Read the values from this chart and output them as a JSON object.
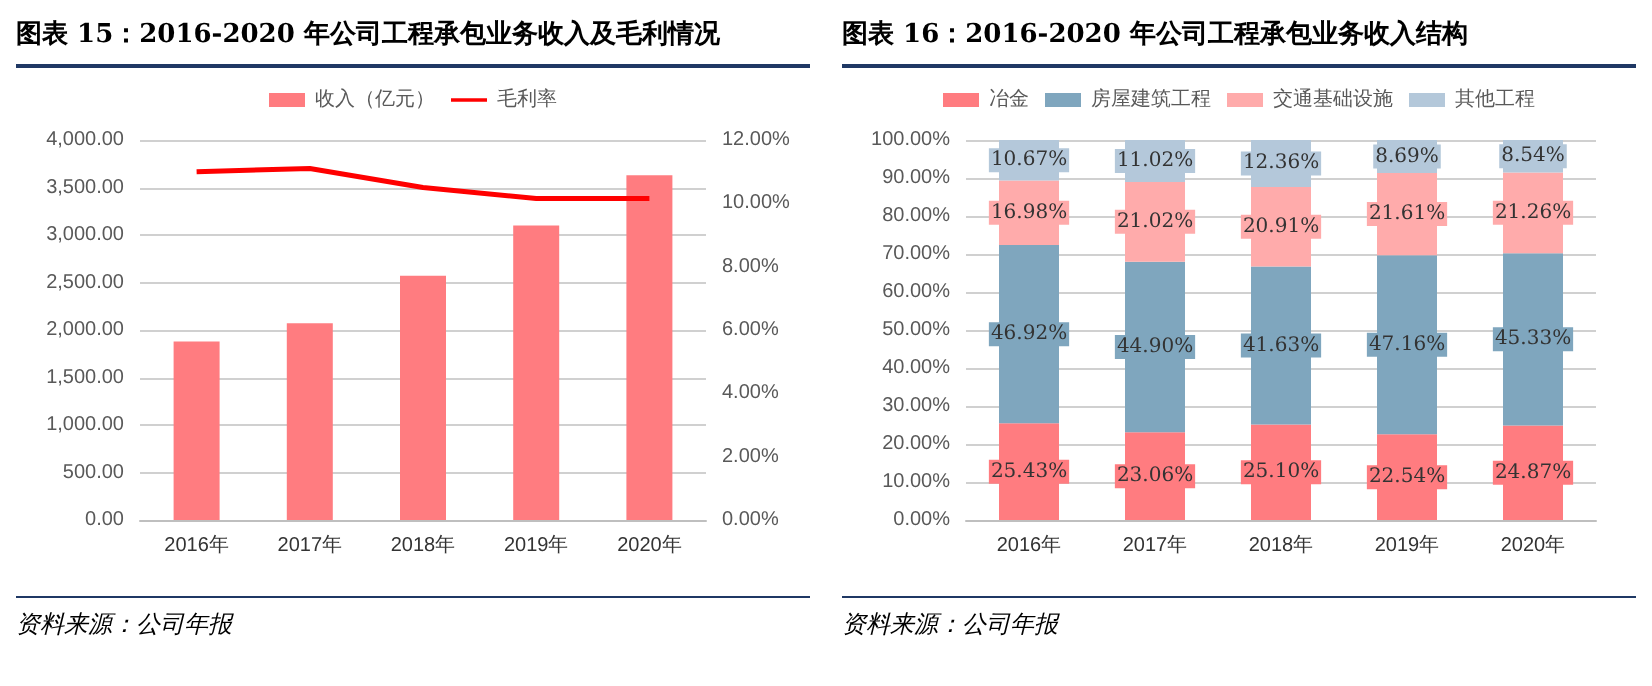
{
  "chart_data": [
    {
      "type": "bar",
      "title": "图表 15：2016-2020 年公司工程承包业务收入及毛利情况",
      "categories": [
        "2016年",
        "2017年",
        "2018年",
        "2019年",
        "2020年"
      ],
      "series": [
        {
          "name": "收入（亿元）",
          "type": "bar",
          "color": "#ff7c80",
          "values": [
            1880,
            2070,
            2570,
            3100,
            3630
          ]
        },
        {
          "name": "毛利率",
          "type": "line",
          "axis": "y2",
          "color": "#ff0000",
          "values": [
            11.0,
            11.1,
            10.5,
            10.15,
            10.15
          ]
        }
      ],
      "ylim": [
        0,
        4000
      ],
      "yticks": [
        {
          "value": 0,
          "label": "0.00"
        },
        {
          "value": 500,
          "label": "500.00"
        },
        {
          "value": 1000,
          "label": "1,000.00"
        },
        {
          "value": 1500,
          "label": "1,500.00"
        },
        {
          "value": 2000,
          "label": "2,000.00"
        },
        {
          "value": 2500,
          "label": "2,500.00"
        },
        {
          "value": 3000,
          "label": "3,000.00"
        },
        {
          "value": 3500,
          "label": "3,500.00"
        },
        {
          "value": 4000,
          "label": "4,000.00"
        }
      ],
      "y2lim": [
        0,
        12
      ],
      "y2ticks": [
        {
          "value": 0,
          "label": "0.00%"
        },
        {
          "value": 2,
          "label": "2.00%"
        },
        {
          "value": 4,
          "label": "4.00%"
        },
        {
          "value": 6,
          "label": "6.00%"
        },
        {
          "value": 8,
          "label": "8.00%"
        },
        {
          "value": 10,
          "label": "10.00%"
        },
        {
          "value": 12,
          "label": "12.00%"
        }
      ],
      "grid": "y",
      "legend": "top",
      "marker": "none",
      "annotations": [
        "资料来源：公司年报"
      ]
    },
    {
      "type": "bar",
      "title": "图表 16：2016-2020 年公司工程承包业务收入结构",
      "categories": [
        "2016年",
        "2017年",
        "2018年",
        "2019年",
        "2020年"
      ],
      "stacked": true,
      "series": [
        {
          "name": "冶金",
          "color": "#ff7c80",
          "values": [
            25.43,
            23.06,
            25.1,
            22.54,
            24.87
          ],
          "value_labels": [
            "25.43%",
            "23.06%",
            "25.10%",
            "22.54%",
            "24.87%"
          ]
        },
        {
          "name": "房屋建筑工程",
          "color": "#7fa6be",
          "values": [
            46.92,
            44.9,
            41.63,
            47.16,
            45.33
          ],
          "value_labels": [
            "46.92%",
            "44.90%",
            "41.63%",
            "47.16%",
            "45.33%"
          ]
        },
        {
          "name": "交通基础设施",
          "color": "#ffabab",
          "values": [
            16.98,
            21.02,
            20.91,
            21.61,
            21.26
          ],
          "value_labels": [
            "16.98%",
            "21.02%",
            "20.91%",
            "21.61%",
            "21.26%"
          ]
        },
        {
          "name": "其他工程",
          "color": "#b4c8da",
          "values": [
            10.67,
            11.02,
            12.36,
            8.69,
            8.54
          ],
          "value_labels": [
            "10.67%",
            "11.02%",
            "12.36%",
            "8.69%",
            "8.54%"
          ]
        }
      ],
      "ylim": [
        0,
        100
      ],
      "yticks": [
        {
          "value": 0,
          "label": "0.00%"
        },
        {
          "value": 10,
          "label": "10.00%"
        },
        {
          "value": 20,
          "label": "20.00%"
        },
        {
          "value": 30,
          "label": "30.00%"
        },
        {
          "value": 40,
          "label": "40.00%"
        },
        {
          "value": 50,
          "label": "50.00%"
        },
        {
          "value": 60,
          "label": "60.00%"
        },
        {
          "value": 70,
          "label": "70.00%"
        },
        {
          "value": 80,
          "label": "80.00%"
        },
        {
          "value": 90,
          "label": "90.00%"
        },
        {
          "value": 100,
          "label": "100.00%"
        }
      ],
      "grid": "y",
      "legend": "top",
      "annotations": [
        "资料来源：公司年报"
      ]
    }
  ]
}
